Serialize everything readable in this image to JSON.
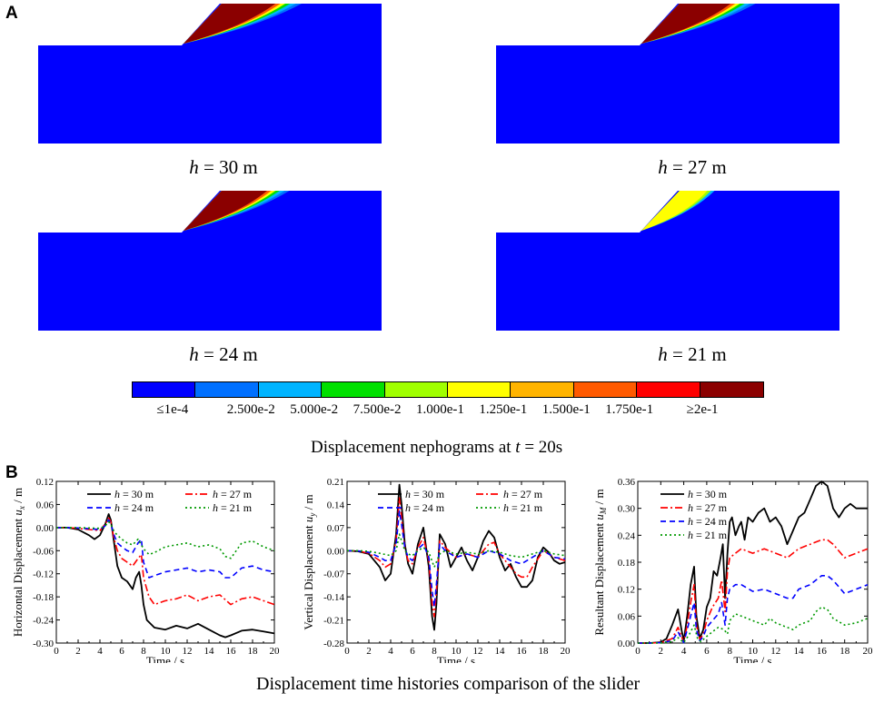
{
  "panel_a_letter": "A",
  "panel_b_letter": "B",
  "nephograms": [
    {
      "h_var": "h",
      "h_text": " = 30 m",
      "level": 1.0
    },
    {
      "h_var": "h",
      "h_text": " = 27 m",
      "level": 0.95
    },
    {
      "h_var": "h",
      "h_text": " = 24 m",
      "level": 0.85
    },
    {
      "h_var": "h",
      "h_text": " = 21 m",
      "level": 0.45
    }
  ],
  "colorbar": {
    "colors": [
      "#0000FF",
      "#0070FF",
      "#00B4FF",
      "#00E000",
      "#A0FF00",
      "#FFFF00",
      "#FFB400",
      "#FF5A00",
      "#FF0000",
      "#8B0000"
    ],
    "labels": [
      "≤1e-4",
      "2.500e-2",
      "5.000e-2",
      "7.500e-2",
      "1.000e-1",
      "1.250e-1",
      "1.500e-1",
      "1.750e-1",
      "≥2e-1"
    ]
  },
  "caption_a": {
    "prefix": "Displacement nephograms at ",
    "var": "t",
    "suffix": " = 20s"
  },
  "caption_b": "Displacement time histories comparison of the slider",
  "chart_data": [
    {
      "type": "line",
      "xlabel": "Time / s",
      "ylabel": "Horizontal Displacement u_x / m",
      "ylabel_parts": [
        "Horizontal Displacement ",
        "u",
        "x",
        " / m"
      ],
      "xlim": [
        0,
        20
      ],
      "ylim": [
        -0.3,
        0.12
      ],
      "xticks": [
        "0",
        "2",
        "4",
        "6",
        "8",
        "10",
        "12",
        "14",
        "16",
        "18",
        "20"
      ],
      "yticks": [
        "0.12",
        "0.06",
        "0.00",
        "-0.06",
        "-0.12",
        "-0.18",
        "-0.24",
        "-0.30"
      ],
      "ytick_values": [
        0.12,
        0.06,
        0.0,
        -0.06,
        -0.12,
        -0.18,
        -0.24,
        -0.3
      ],
      "series": [
        {
          "name": "h = 30 m",
          "color": "#000000",
          "dash": "",
          "x": [
            0,
            1,
            2,
            3,
            3.5,
            4,
            4.5,
            4.8,
            5,
            5.3,
            5.6,
            6,
            6.5,
            7,
            7.3,
            7.6,
            7.8,
            8,
            8.3,
            9,
            10,
            11,
            12,
            13,
            14,
            15,
            15.5,
            16,
            17,
            18,
            19,
            20
          ],
          "y": [
            0,
            0,
            -0.005,
            -0.02,
            -0.03,
            -0.02,
            0.01,
            0.035,
            0.02,
            -0.04,
            -0.1,
            -0.13,
            -0.14,
            -0.16,
            -0.13,
            -0.115,
            -0.15,
            -0.2,
            -0.24,
            -0.26,
            -0.265,
            -0.255,
            -0.262,
            -0.25,
            -0.265,
            -0.28,
            -0.285,
            -0.28,
            -0.268,
            -0.265,
            -0.27,
            -0.275
          ]
        },
        {
          "name": "h = 27 m",
          "color": "#FF0000",
          "dash": "8,3,2,3",
          "x": [
            0,
            1,
            2,
            3,
            4,
            4.5,
            4.8,
            5,
            5.3,
            5.6,
            6,
            6.5,
            7,
            7.5,
            7.8,
            8,
            8.5,
            9,
            10,
            11,
            12,
            13,
            14,
            15,
            16,
            17,
            18,
            19,
            20
          ],
          "y": [
            0,
            0,
            -0.002,
            -0.005,
            -0.008,
            0.01,
            0.025,
            0.015,
            -0.03,
            -0.06,
            -0.08,
            -0.09,
            -0.1,
            -0.08,
            -0.07,
            -0.13,
            -0.18,
            -0.2,
            -0.19,
            -0.185,
            -0.175,
            -0.19,
            -0.18,
            -0.175,
            -0.2,
            -0.185,
            -0.18,
            -0.19,
            -0.2
          ]
        },
        {
          "name": "h = 24 m",
          "color": "#0000FF",
          "dash": "6,4",
          "x": [
            0,
            1,
            2,
            3,
            4,
            4.5,
            4.8,
            5,
            5.3,
            5.6,
            6,
            6.5,
            7,
            7.5,
            7.8,
            8,
            8.5,
            9,
            10,
            11,
            12,
            13,
            14,
            15,
            15.5,
            16,
            17,
            18,
            19,
            20
          ],
          "y": [
            0,
            0,
            -0.001,
            -0.003,
            -0.005,
            0.005,
            0.02,
            0.01,
            -0.02,
            -0.04,
            -0.05,
            -0.06,
            -0.065,
            -0.04,
            -0.03,
            -0.09,
            -0.13,
            -0.125,
            -0.115,
            -0.11,
            -0.105,
            -0.115,
            -0.11,
            -0.115,
            -0.13,
            -0.13,
            -0.105,
            -0.1,
            -0.11,
            -0.115
          ]
        },
        {
          "name": "h = 21 m",
          "color": "#009900",
          "dash": "2,3",
          "x": [
            0,
            1,
            2,
            3,
            4,
            4.5,
            4.8,
            5,
            5.3,
            5.6,
            6,
            6.5,
            7,
            7.5,
            8,
            8.5,
            9,
            10,
            11,
            12,
            13,
            14,
            15,
            15.5,
            16,
            17,
            18,
            19,
            20
          ],
          "y": [
            0,
            0,
            0,
            -0.001,
            -0.002,
            0.005,
            0.015,
            0.008,
            -0.01,
            -0.02,
            -0.03,
            -0.04,
            -0.045,
            -0.03,
            -0.055,
            -0.07,
            -0.065,
            -0.05,
            -0.045,
            -0.04,
            -0.05,
            -0.045,
            -0.055,
            -0.075,
            -0.08,
            -0.04,
            -0.035,
            -0.05,
            -0.06
          ]
        }
      ]
    },
    {
      "type": "line",
      "xlabel": "Time / s",
      "ylabel": "Vertical Displacement u_y / m",
      "ylabel_parts": [
        "Vertical Displacement ",
        "u",
        "y",
        " / m"
      ],
      "xlim": [
        0,
        20
      ],
      "ylim": [
        -0.28,
        0.21
      ],
      "xticks": [
        "0",
        "2",
        "4",
        "6",
        "8",
        "10",
        "12",
        "14",
        "16",
        "18",
        "20"
      ],
      "yticks": [
        "0.21",
        "0.14",
        "0.07",
        "0.00",
        "-0.07",
        "-0.14",
        "-0.21",
        "-0.28"
      ],
      "ytick_values": [
        0.21,
        0.14,
        0.07,
        0.0,
        -0.07,
        -0.14,
        -0.21,
        -0.28
      ],
      "series": [
        {
          "name": "h = 30 m",
          "color": "#000000",
          "dash": "",
          "x": [
            0,
            1,
            2,
            3,
            3.5,
            4,
            4.5,
            4.8,
            5,
            5.3,
            5.6,
            6,
            6.5,
            7,
            7.5,
            7.8,
            8,
            8.2,
            8.5,
            9,
            9.5,
            10,
            10.5,
            11,
            11.5,
            12,
            12.5,
            13,
            13.5,
            14,
            14.5,
            15,
            15.5,
            16,
            16.5,
            17,
            17.5,
            18,
            18.5,
            19,
            19.5,
            20
          ],
          "y": [
            0,
            -0.002,
            -0.01,
            -0.05,
            -0.09,
            -0.07,
            0.05,
            0.2,
            0.14,
            0.02,
            -0.04,
            -0.07,
            0.02,
            0.07,
            -0.05,
            -0.2,
            -0.24,
            -0.16,
            0.05,
            0.02,
            -0.05,
            -0.02,
            0.01,
            -0.03,
            -0.06,
            -0.02,
            0.03,
            0.06,
            0.04,
            -0.02,
            -0.06,
            -0.04,
            -0.08,
            -0.11,
            -0.11,
            -0.09,
            -0.02,
            0.01,
            -0.005,
            -0.03,
            -0.04,
            -0.035
          ]
        },
        {
          "name": "h = 27 m",
          "color": "#FF0000",
          "dash": "8,3,2,3",
          "x": [
            0,
            1,
            2,
            3,
            3.5,
            4,
            4.5,
            4.8,
            5,
            5.3,
            5.6,
            6,
            6.5,
            7,
            7.5,
            7.8,
            8,
            8.2,
            8.5,
            9,
            10,
            11,
            12,
            13,
            13.5,
            14,
            15,
            15.5,
            16,
            16.5,
            17,
            18,
            19,
            20
          ],
          "y": [
            0,
            -0.001,
            -0.008,
            -0.03,
            -0.05,
            -0.04,
            0.03,
            0.16,
            0.1,
            0.01,
            -0.03,
            -0.04,
            0.01,
            0.04,
            -0.03,
            -0.16,
            -0.2,
            -0.12,
            0.03,
            0.01,
            -0.02,
            -0.01,
            -0.02,
            0.02,
            0.025,
            -0.01,
            -0.05,
            -0.07,
            -0.08,
            -0.08,
            -0.05,
            0,
            -0.02,
            -0.03
          ]
        },
        {
          "name": "h = 24 m",
          "color": "#0000FF",
          "dash": "6,4",
          "x": [
            0,
            1,
            2,
            3,
            3.5,
            4,
            4.5,
            4.8,
            5,
            5.3,
            5.6,
            6,
            6.5,
            7,
            7.5,
            7.8,
            8,
            8.2,
            8.5,
            9,
            10,
            11,
            12,
            13,
            14,
            15,
            16,
            17,
            18,
            19,
            20
          ],
          "y": [
            0,
            -0.001,
            -0.005,
            -0.02,
            -0.03,
            -0.03,
            0.02,
            0.12,
            0.08,
            0.01,
            -0.02,
            -0.03,
            0.005,
            0.02,
            -0.02,
            -0.12,
            -0.17,
            -0.1,
            0.02,
            0.0,
            -0.02,
            -0.01,
            -0.02,
            0.0,
            -0.01,
            -0.03,
            -0.04,
            -0.02,
            0.0,
            -0.02,
            -0.025
          ]
        },
        {
          "name": "h = 21 m",
          "color": "#009900",
          "dash": "2,3",
          "x": [
            0,
            1,
            2,
            3,
            4,
            4.5,
            4.8,
            5,
            5.3,
            5.6,
            6,
            6.5,
            7,
            7.5,
            8,
            8.5,
            9,
            10,
            11,
            12,
            13,
            14,
            15,
            16,
            17,
            18,
            19,
            20
          ],
          "y": [
            0,
            0,
            -0.002,
            -0.008,
            -0.015,
            0.0,
            0.05,
            0.03,
            0.0,
            -0.01,
            -0.015,
            0.0,
            0.01,
            -0.005,
            -0.05,
            -0.01,
            0.0,
            -0.01,
            -0.005,
            -0.01,
            0.0,
            -0.005,
            -0.015,
            -0.02,
            -0.01,
            0.0,
            -0.01,
            -0.015
          ]
        }
      ]
    },
    {
      "type": "line",
      "xlabel": "Time / s",
      "ylabel": "Resultant Displacement u_M / m",
      "ylabel_parts": [
        "Resultant Displacement ",
        "u",
        "M",
        " / m"
      ],
      "xlim": [
        0,
        20
      ],
      "ylim": [
        0,
        0.36
      ],
      "xticks": [
        "0",
        "2",
        "4",
        "6",
        "8",
        "10",
        "12",
        "14",
        "16",
        "18",
        "20"
      ],
      "yticks": [
        "0.36",
        "0.30",
        "0.24",
        "0.18",
        "0.12",
        "0.06",
        "0.00"
      ],
      "ytick_values": [
        0.36,
        0.3,
        0.24,
        0.18,
        0.12,
        0.06,
        0.0
      ],
      "series": [
        {
          "name": "h = 30 m",
          "color": "#000000",
          "dash": "",
          "x": [
            0,
            1,
            2,
            2.5,
            3,
            3.5,
            3.8,
            4,
            4.3,
            4.6,
            4.9,
            5.1,
            5.4,
            5.7,
            6,
            6.3,
            6.6,
            6.9,
            7.2,
            7.4,
            7.6,
            7.8,
            8,
            8.2,
            8.5,
            8.8,
            9,
            9.3,
            9.6,
            10,
            10.5,
            11,
            11.5,
            12,
            12.5,
            13,
            13.5,
            14,
            14.5,
            15,
            15.5,
            16,
            16.5,
            17,
            17.5,
            18,
            18.5,
            19,
            19.5,
            20
          ],
          "y": [
            0,
            0,
            0.002,
            0.01,
            0.04,
            0.075,
            0.03,
            0.005,
            0.06,
            0.13,
            0.17,
            0.06,
            0.01,
            0.03,
            0.08,
            0.1,
            0.16,
            0.15,
            0.19,
            0.22,
            0.1,
            0.2,
            0.27,
            0.28,
            0.24,
            0.26,
            0.27,
            0.23,
            0.28,
            0.27,
            0.29,
            0.3,
            0.27,
            0.28,
            0.26,
            0.22,
            0.25,
            0.28,
            0.29,
            0.32,
            0.35,
            0.36,
            0.35,
            0.3,
            0.28,
            0.3,
            0.31,
            0.3,
            0.3,
            0.3
          ]
        },
        {
          "name": "h = 27 m",
          "color": "#FF0000",
          "dash": "8,3,2,3",
          "x": [
            0,
            1,
            2,
            3,
            3.5,
            3.8,
            4,
            4.3,
            4.6,
            4.9,
            5.1,
            5.4,
            5.7,
            6,
            6.5,
            7,
            7.3,
            7.6,
            7.8,
            8,
            8.5,
            9,
            10,
            11,
            12,
            13,
            13.5,
            14,
            15,
            16,
            16.5,
            17,
            18,
            19,
            20
          ],
          "y": [
            0,
            0,
            0.001,
            0.01,
            0.035,
            0.015,
            0.002,
            0.04,
            0.09,
            0.13,
            0.04,
            0.008,
            0.02,
            0.05,
            0.08,
            0.1,
            0.14,
            0.07,
            0.16,
            0.19,
            0.2,
            0.21,
            0.2,
            0.21,
            0.2,
            0.19,
            0.2,
            0.21,
            0.22,
            0.23,
            0.23,
            0.22,
            0.19,
            0.2,
            0.21
          ]
        },
        {
          "name": "h = 24 m",
          "color": "#0000FF",
          "dash": "6,4",
          "x": [
            0,
            1,
            2,
            3,
            3.5,
            3.8,
            4,
            4.3,
            4.6,
            4.9,
            5.1,
            5.4,
            5.7,
            6,
            6.5,
            7,
            7.3,
            7.6,
            7.8,
            8,
            8.5,
            9,
            10,
            11,
            12,
            13,
            13.5,
            14,
            15,
            16,
            16.5,
            17,
            18,
            19,
            20
          ],
          "y": [
            0,
            0,
            0.001,
            0.005,
            0.025,
            0.01,
            0.001,
            0.03,
            0.06,
            0.09,
            0.03,
            0.005,
            0.015,
            0.035,
            0.05,
            0.065,
            0.09,
            0.04,
            0.1,
            0.12,
            0.13,
            0.13,
            0.115,
            0.12,
            0.11,
            0.1,
            0.1,
            0.12,
            0.13,
            0.15,
            0.15,
            0.14,
            0.11,
            0.12,
            0.13
          ]
        },
        {
          "name": "h = 21 m",
          "color": "#009900",
          "dash": "2,3",
          "x": [
            0,
            1,
            2,
            3,
            3.5,
            4,
            4.5,
            4.9,
            5.2,
            5.5,
            6,
            6.5,
            7,
            7.5,
            7.8,
            8,
            8.5,
            9,
            10,
            11,
            11.5,
            12,
            13,
            13.5,
            14,
            15,
            15.5,
            16,
            16.5,
            17,
            18,
            19,
            20
          ],
          "y": [
            0,
            0,
            0,
            0.003,
            0.012,
            0.001,
            0.02,
            0.04,
            0.01,
            0.003,
            0.015,
            0.025,
            0.035,
            0.03,
            0.02,
            0.05,
            0.065,
            0.06,
            0.05,
            0.04,
            0.055,
            0.045,
            0.035,
            0.03,
            0.04,
            0.05,
            0.07,
            0.08,
            0.075,
            0.055,
            0.04,
            0.045,
            0.055
          ]
        }
      ]
    }
  ]
}
